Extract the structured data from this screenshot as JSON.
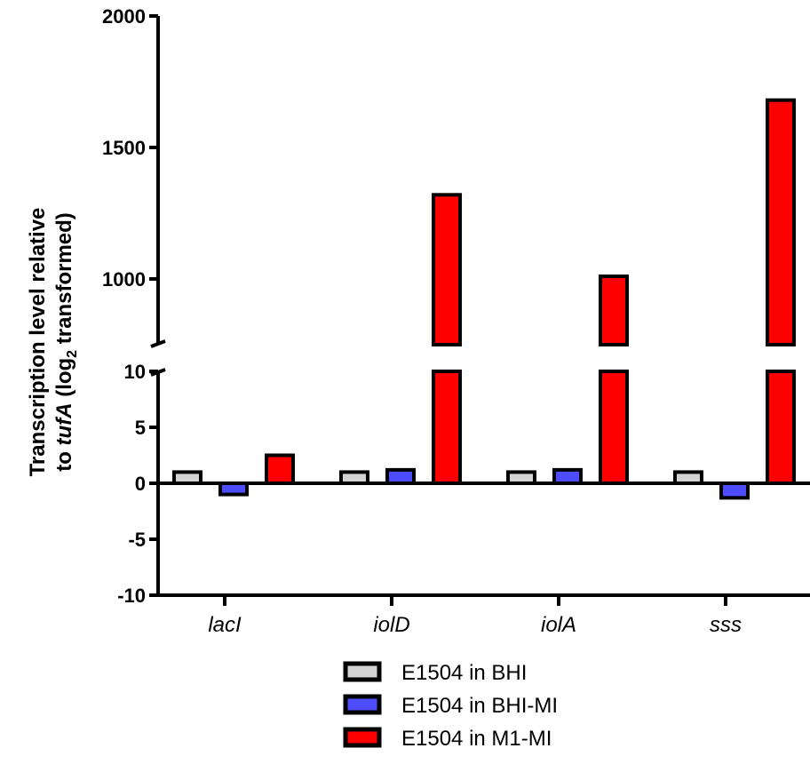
{
  "chart_data": {
    "type": "bar",
    "y_axis_break": true,
    "ylabel_line1": "Transcription level relative",
    "ylabel_line2_prefix": "to ",
    "ylabel_line2_gene": "tufA",
    "ylabel_line2_mid": " (log",
    "ylabel_line2_sub": "2",
    "ylabel_line2_suffix": " transformed)",
    "categories": [
      "lacI",
      "iolD",
      "iolA",
      "sss"
    ],
    "series": [
      {
        "name": "E1504 in BHI",
        "color": "#d3d3d3",
        "values": [
          1,
          1,
          1,
          1
        ]
      },
      {
        "name": "E1504 in BHI-MI",
        "color": "#4d4dff",
        "values": [
          -1,
          1.2,
          1.2,
          -1.3
        ]
      },
      {
        "name": "E1504 in M1-MI",
        "color": "#ff0000",
        "values": [
          2.5,
          1320,
          1010,
          1680
        ]
      }
    ],
    "lower_segment": {
      "ylim": [
        -10,
        10
      ],
      "ticks": [
        "-10",
        "-5",
        "0",
        "5",
        "10"
      ]
    },
    "upper_segment": {
      "ylim": [
        750,
        2000
      ],
      "ticks": [
        "1000",
        "1500",
        "2000"
      ]
    },
    "legend_position": "bottom-center",
    "grid": false
  }
}
